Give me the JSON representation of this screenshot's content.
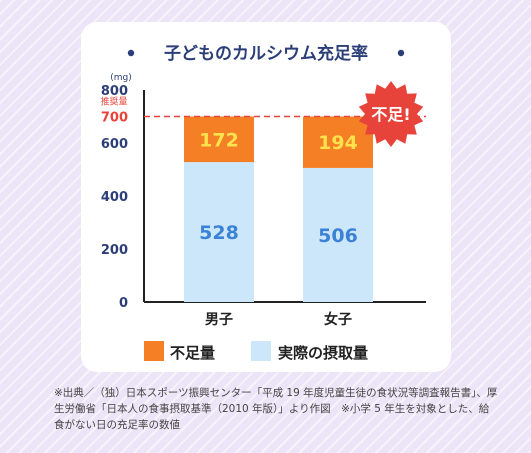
{
  "chart_data": {
    "type": "bar",
    "stacked": true,
    "title": "子どものカルシウム充足率",
    "y_unit": "(mg)",
    "ylim": [
      0,
      800
    ],
    "y_ticks": [
      "0",
      "200",
      "400",
      "600",
      "700",
      "800"
    ],
    "categories": [
      "男子",
      "女子"
    ],
    "series": [
      {
        "name": "実際の摂取量",
        "values": [
          528,
          506
        ],
        "value_labels": [
          "528",
          "506"
        ],
        "color": "#cce7fa",
        "label_color": "#3b82d6"
      },
      {
        "name": "不足量",
        "values": [
          172,
          194
        ],
        "value_labels": [
          "172",
          "194"
        ],
        "color": "#f47f24",
        "label_color": "#ffe24d"
      }
    ],
    "reference_line": {
      "label": "推奨量",
      "value": 700,
      "color": "#e8433b"
    },
    "badge": {
      "text": "不足!",
      "color": "#e8433b"
    },
    "legend_position": "bottom",
    "grid": false
  },
  "source_note": "※出典／（独）日本スポーツ振興センター「平成 19 年度児童生徒の食状況等調査報告書」、厚生労働省「日本人の食事摂取基準（2010 年版）」より作図　※小学 5 年生を対象とした、給食がない日の充足率の数値"
}
